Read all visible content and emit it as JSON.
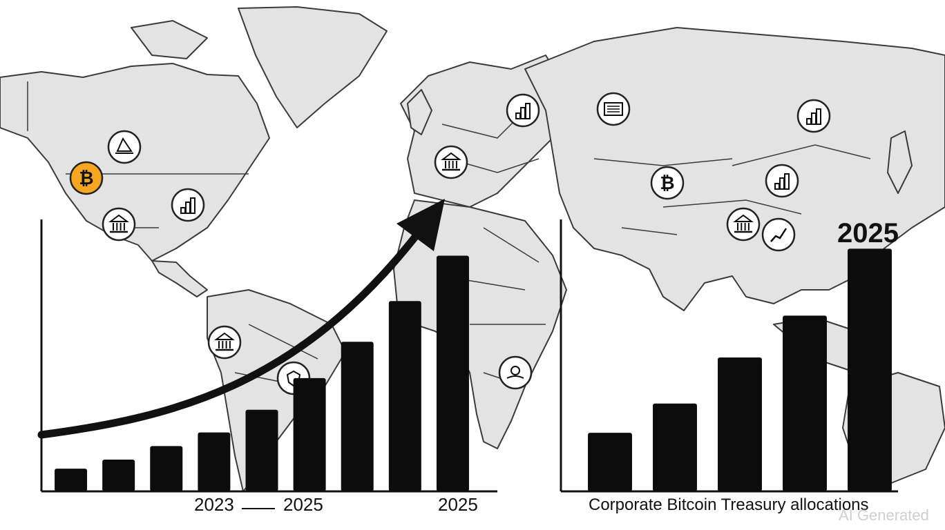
{
  "chart_data": [
    {
      "type": "bar",
      "categories": [
        "",
        "",
        "",
        "",
        "",
        "",
        "",
        "",
        ""
      ],
      "values": [
        5,
        7,
        10,
        13,
        18,
        25,
        33,
        42,
        52
      ],
      "x_tick_labels": [
        "2023",
        "2025",
        "2025"
      ],
      "trend": "upward-arrow",
      "ylim": [
        0,
        60
      ],
      "grid": false
    },
    {
      "type": "bar",
      "categories": [
        "",
        "",
        "",
        "",
        ""
      ],
      "values": [
        14,
        21,
        32,
        42,
        58
      ],
      "annotation": "2025",
      "caption": "Corporate Bitcoin Treasury allocations",
      "ylim": [
        0,
        65
      ],
      "grid": false
    }
  ],
  "watermark": "AI Generated",
  "colors": {
    "map_land": "#e3e3e3",
    "map_outline": "#3a3a3a",
    "bars": "#0c0c0c",
    "bitcoin_accent": "#f5a623"
  },
  "map_icons": [
    {
      "icon": "bitcoin-icon",
      "color": "#f5a623"
    },
    {
      "icon": "sailboat-icon"
    },
    {
      "icon": "bank-icon"
    },
    {
      "icon": "office-building-icon"
    },
    {
      "icon": "bank-icon"
    },
    {
      "icon": "bar-chart-icon"
    },
    {
      "icon": "document-icon"
    },
    {
      "icon": "building-icon"
    },
    {
      "icon": "bitcoin-icon"
    },
    {
      "icon": "stack-icon"
    },
    {
      "icon": "bank-icon"
    },
    {
      "icon": "growth-chart-icon"
    },
    {
      "icon": "bank-icon"
    },
    {
      "icon": "shield-icon"
    },
    {
      "icon": "hand-coin-icon"
    }
  ]
}
